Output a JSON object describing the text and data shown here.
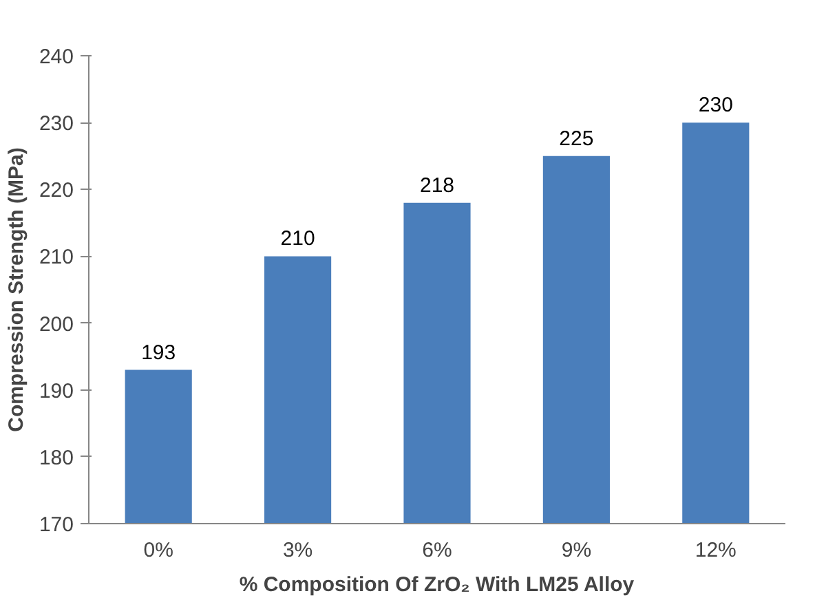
{
  "chart_data": {
    "type": "bar",
    "xlabel": "% Composition Of ZrO₂ With LM25 Alloy",
    "ylabel": "Compression Strength (MPa)",
    "categories": [
      "0%",
      "3%",
      "6%",
      "9%",
      "12%"
    ],
    "values": [
      193,
      210,
      218,
      225,
      230
    ],
    "color": "#4a7ebb",
    "ylim": [
      170,
      240
    ],
    "yticks": [
      170,
      180,
      190,
      200,
      210,
      220,
      230,
      240
    ],
    "grid": false,
    "data_labels": true
  }
}
